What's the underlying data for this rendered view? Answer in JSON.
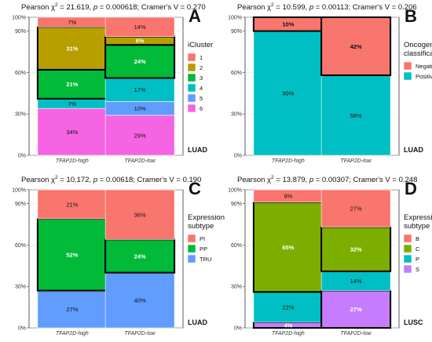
{
  "chart_data": [
    {
      "type": "bar",
      "panel": "A",
      "stat_prefix": "Pearson χ",
      "stat_body": " = 21.619, ",
      "stat_p": "p",
      "stat_rest": " = 0.000618; Cramer's V = 0.270",
      "categories": [
        "TFAP2D-high",
        "TFAP2D-low"
      ],
      "ylim": [
        0,
        100
      ],
      "yticks": [
        "0%",
        "30%",
        "60%",
        "90%",
        "100%"
      ],
      "legend_title": [
        "iCluster"
      ],
      "legend_position": "right",
      "cancer": "LUAD",
      "series": [
        {
          "name": "6",
          "color": "#f564e3",
          "values": [
            34,
            29
          ],
          "labels": [
            "34%",
            "29%"
          ]
        },
        {
          "name": "5",
          "color": "#619cff",
          "values": [
            0,
            10
          ],
          "labels": [
            "",
            "10%"
          ]
        },
        {
          "name": "4",
          "color": "#00bfc4",
          "values": [
            7,
            17
          ],
          "labels": [
            "7%",
            "17%"
          ]
        },
        {
          "name": "3",
          "color": "#00ba38",
          "values": [
            21,
            24
          ],
          "labels": [
            "21%",
            "24%"
          ]
        },
        {
          "name": "2",
          "color": "#b79f00",
          "values": [
            31,
            6
          ],
          "labels": [
            "31%",
            "6%"
          ]
        },
        {
          "name": "1",
          "color": "#f8766d",
          "values": [
            7,
            14
          ],
          "labels": [
            "7%",
            "14%"
          ]
        }
      ],
      "highlight": [
        "2",
        "3"
      ]
    },
    {
      "type": "bar",
      "panel": "B",
      "stat_prefix": "Pearson χ",
      "stat_body": " = 10.599, ",
      "stat_p": "p",
      "stat_rest": " = 0.00113; Cramer's V = 0.206",
      "categories": [
        "TFAP2D-high",
        "TFAP2D-low"
      ],
      "ylim": [
        0,
        100
      ],
      "yticks": [
        "0%",
        "30%",
        "60%",
        "90%",
        "100%"
      ],
      "legend_title": [
        "Oncogene",
        "classification"
      ],
      "legend_position": "right",
      "cancer": "LUAD",
      "series": [
        {
          "name": "Positive",
          "color": "#00bfc4",
          "values": [
            90,
            58
          ],
          "labels": [
            "90%",
            "58%"
          ]
        },
        {
          "name": "Negative",
          "color": "#f8766d",
          "values": [
            10,
            42
          ],
          "labels": [
            "10%",
            "42%"
          ]
        }
      ],
      "highlight": [
        "Negative"
      ]
    },
    {
      "type": "bar",
      "panel": "C",
      "stat_prefix": "Pearson χ",
      "stat_body": " = 10.172, ",
      "stat_p": "p",
      "stat_rest": " = 0.00618; Cramer's V = 0.190",
      "categories": [
        "TFAP2D-high",
        "TFAP2D-low"
      ],
      "ylim": [
        0,
        100
      ],
      "yticks": [
        "0%",
        "30%",
        "60%",
        "90%",
        "100%"
      ],
      "legend_title": [
        "Expression",
        "subtype"
      ],
      "legend_position": "right",
      "cancer": "LUAD",
      "series": [
        {
          "name": "TRU",
          "color": "#619cff",
          "values": [
            27,
            40
          ],
          "labels": [
            "27%",
            "40%"
          ]
        },
        {
          "name": "PP",
          "color": "#00ba38",
          "values": [
            52,
            24
          ],
          "labels": [
            "52%",
            "24%"
          ]
        },
        {
          "name": "PI",
          "color": "#f8766d",
          "values": [
            21,
            36
          ],
          "labels": [
            "21%",
            "36%"
          ]
        }
      ],
      "highlight": [
        "PP"
      ]
    },
    {
      "type": "bar",
      "panel": "D",
      "stat_prefix": "Pearson χ",
      "stat_body": " = 13.879, ",
      "stat_p": "p",
      "stat_rest": " = 0.00307; Cramer's V = 0.248",
      "categories": [
        "TFAP2D-high",
        "TFAP2D-low"
      ],
      "ylim": [
        0,
        100
      ],
      "yticks": [
        "0%",
        "30%",
        "60%",
        "90%",
        "100%"
      ],
      "legend_title": [
        "Expression",
        "subtype"
      ],
      "legend_position": "right",
      "cancer": "LUSC",
      "series": [
        {
          "name": "S",
          "color": "#c77cff",
          "values": [
            4,
            27
          ],
          "labels": [
            "4%",
            "27%"
          ]
        },
        {
          "name": "P",
          "color": "#00bfc4",
          "values": [
            22,
            14
          ],
          "labels": [
            "22%",
            "14%"
          ]
        },
        {
          "name": "C",
          "color": "#7cae00",
          "values": [
            65,
            32
          ],
          "labels": [
            "65%",
            "32%"
          ]
        },
        {
          "name": "B",
          "color": "#f8766d",
          "values": [
            9,
            27
          ],
          "labels": [
            "9%",
            "27%"
          ]
        }
      ],
      "highlight": [
        "C",
        "S"
      ]
    }
  ]
}
